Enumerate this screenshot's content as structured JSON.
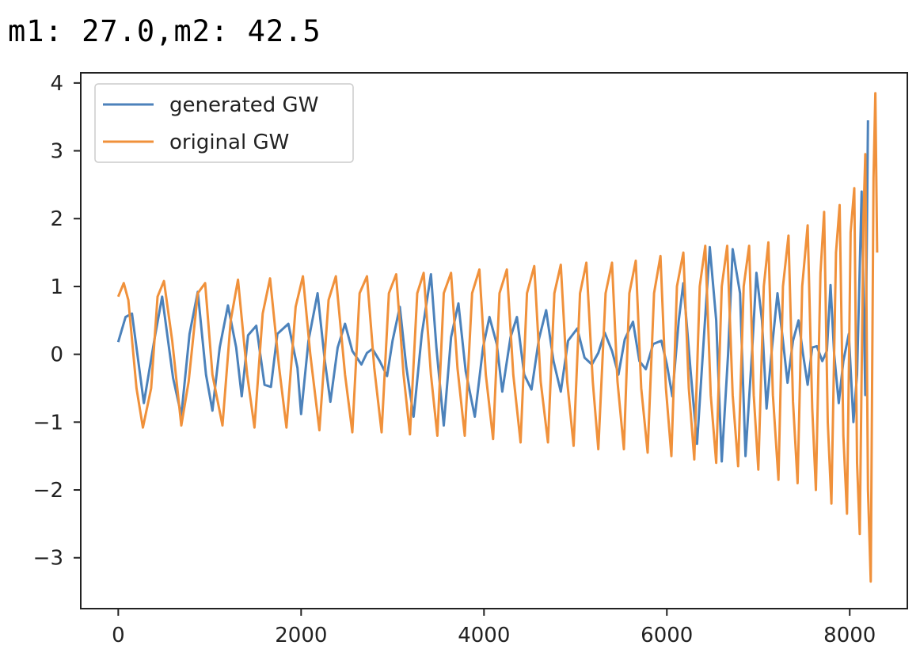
{
  "header": {
    "text": "m1: 27.0,m2: 42.5"
  },
  "chart_data": {
    "type": "line",
    "title": "",
    "xlabel": "",
    "ylabel": "",
    "xlim": [
      -410,
      8630
    ],
    "ylim": [
      -3.75,
      4.15
    ],
    "xticks": [
      0,
      2000,
      4000,
      6000,
      8000
    ],
    "yticks": [
      -3,
      -2,
      -1,
      0,
      1,
      2,
      3,
      4
    ],
    "grid": false,
    "legend": "upper-left",
    "series": [
      {
        "name": "generated GW",
        "color": "#4c82bb",
        "points": [
          [
            0,
            0.18
          ],
          [
            80,
            0.55
          ],
          [
            150,
            0.6
          ],
          [
            280,
            -0.72
          ],
          [
            400,
            0.25
          ],
          [
            480,
            0.85
          ],
          [
            600,
            -0.35
          ],
          [
            690,
            -0.9
          ],
          [
            780,
            0.3
          ],
          [
            870,
            0.92
          ],
          [
            960,
            -0.3
          ],
          [
            1030,
            -0.83
          ],
          [
            1110,
            0.1
          ],
          [
            1200,
            0.72
          ],
          [
            1290,
            0.1
          ],
          [
            1350,
            -0.62
          ],
          [
            1420,
            0.28
          ],
          [
            1510,
            0.42
          ],
          [
            1600,
            -0.45
          ],
          [
            1670,
            -0.48
          ],
          [
            1740,
            0.3
          ],
          [
            1860,
            0.45
          ],
          [
            1960,
            -0.2
          ],
          [
            2000,
            -0.88
          ],
          [
            2080,
            0.2
          ],
          [
            2180,
            0.9
          ],
          [
            2260,
            -0.1
          ],
          [
            2320,
            -0.7
          ],
          [
            2400,
            0.1
          ],
          [
            2480,
            0.45
          ],
          [
            2560,
            0.05
          ],
          [
            2660,
            -0.15
          ],
          [
            2720,
            0.02
          ],
          [
            2780,
            0.08
          ],
          [
            2860,
            -0.1
          ],
          [
            2940,
            -0.32
          ],
          [
            3000,
            0.2
          ],
          [
            3080,
            0.7
          ],
          [
            3150,
            -0.18
          ],
          [
            3230,
            -0.92
          ],
          [
            3320,
            0.3
          ],
          [
            3420,
            1.18
          ],
          [
            3480,
            0.1
          ],
          [
            3560,
            -1.05
          ],
          [
            3640,
            0.25
          ],
          [
            3720,
            0.75
          ],
          [
            3800,
            -0.25
          ],
          [
            3900,
            -0.92
          ],
          [
            3990,
            0.1
          ],
          [
            4060,
            0.55
          ],
          [
            4140,
            0.15
          ],
          [
            4200,
            -0.55
          ],
          [
            4290,
            0.25
          ],
          [
            4360,
            0.55
          ],
          [
            4440,
            -0.3
          ],
          [
            4520,
            -0.52
          ],
          [
            4600,
            0.22
          ],
          [
            4680,
            0.65
          ],
          [
            4760,
            -0.1
          ],
          [
            4840,
            -0.55
          ],
          [
            4920,
            0.2
          ],
          [
            5020,
            0.38
          ],
          [
            5100,
            -0.05
          ],
          [
            5180,
            -0.15
          ],
          [
            5250,
            0.02
          ],
          [
            5320,
            0.32
          ],
          [
            5400,
            0.05
          ],
          [
            5470,
            -0.3
          ],
          [
            5540,
            0.22
          ],
          [
            5630,
            0.48
          ],
          [
            5700,
            -0.1
          ],
          [
            5770,
            -0.22
          ],
          [
            5850,
            0.15
          ],
          [
            5940,
            0.2
          ],
          [
            6000,
            -0.15
          ],
          [
            6060,
            -0.62
          ],
          [
            6130,
            0.5
          ],
          [
            6180,
            1.05
          ],
          [
            6260,
            -0.25
          ],
          [
            6330,
            -1.32
          ],
          [
            6400,
            0.15
          ],
          [
            6470,
            1.58
          ],
          [
            6540,
            0.5
          ],
          [
            6600,
            -1.58
          ],
          [
            6670,
            0.0
          ],
          [
            6720,
            1.55
          ],
          [
            6800,
            0.9
          ],
          [
            6860,
            -1.5
          ],
          [
            6930,
            0.0
          ],
          [
            6980,
            1.2
          ],
          [
            7040,
            0.5
          ],
          [
            7090,
            -0.8
          ],
          [
            7150,
            0.1
          ],
          [
            7210,
            0.9
          ],
          [
            7270,
            0.2
          ],
          [
            7320,
            -0.42
          ],
          [
            7380,
            0.2
          ],
          [
            7440,
            0.5
          ],
          [
            7490,
            0.0
          ],
          [
            7540,
            -0.45
          ],
          [
            7590,
            0.1
          ],
          [
            7640,
            0.12
          ],
          [
            7700,
            -0.1
          ],
          [
            7750,
            0.05
          ],
          [
            7790,
            1.02
          ],
          [
            7830,
            0.0
          ],
          [
            7880,
            -0.72
          ],
          [
            7930,
            -0.1
          ],
          [
            7990,
            0.3
          ],
          [
            8040,
            -1.0
          ],
          [
            8080,
            -0.3
          ],
          [
            8130,
            2.4
          ],
          [
            8170,
            -0.6
          ],
          [
            8200,
            3.45
          ]
        ]
      },
      {
        "name": "original GW",
        "color": "#f0913b",
        "points": [
          [
            0,
            0.85
          ],
          [
            60,
            1.05
          ],
          [
            110,
            0.8
          ],
          [
            200,
            -0.5
          ],
          [
            270,
            -1.08
          ],
          [
            360,
            -0.5
          ],
          [
            430,
            0.85
          ],
          [
            500,
            1.08
          ],
          [
            590,
            0.2
          ],
          [
            690,
            -1.05
          ],
          [
            770,
            -0.4
          ],
          [
            870,
            0.9
          ],
          [
            950,
            1.05
          ],
          [
            1030,
            -0.3
          ],
          [
            1140,
            -1.05
          ],
          [
            1230,
            0.5
          ],
          [
            1310,
            1.1
          ],
          [
            1410,
            -0.3
          ],
          [
            1490,
            -1.08
          ],
          [
            1580,
            0.6
          ],
          [
            1660,
            1.12
          ],
          [
            1760,
            -0.2
          ],
          [
            1840,
            -1.08
          ],
          [
            1940,
            0.7
          ],
          [
            2020,
            1.15
          ],
          [
            2100,
            0.0
          ],
          [
            2200,
            -1.12
          ],
          [
            2300,
            0.8
          ],
          [
            2380,
            1.15
          ],
          [
            2480,
            -0.3
          ],
          [
            2560,
            -1.15
          ],
          [
            2640,
            0.9
          ],
          [
            2720,
            1.15
          ],
          [
            2800,
            -0.2
          ],
          [
            2880,
            -1.15
          ],
          [
            2960,
            0.9
          ],
          [
            3040,
            1.18
          ],
          [
            3120,
            -0.3
          ],
          [
            3190,
            -1.18
          ],
          [
            3270,
            0.9
          ],
          [
            3340,
            1.2
          ],
          [
            3420,
            -0.3
          ],
          [
            3490,
            -1.2
          ],
          [
            3560,
            0.9
          ],
          [
            3640,
            1.2
          ],
          [
            3710,
            -0.2
          ],
          [
            3790,
            -1.2
          ],
          [
            3870,
            0.9
          ],
          [
            3950,
            1.25
          ],
          [
            4020,
            -0.3
          ],
          [
            4100,
            -1.25
          ],
          [
            4170,
            0.9
          ],
          [
            4250,
            1.25
          ],
          [
            4320,
            -0.3
          ],
          [
            4400,
            -1.3
          ],
          [
            4470,
            0.9
          ],
          [
            4550,
            1.3
          ],
          [
            4620,
            -0.4
          ],
          [
            4700,
            -1.3
          ],
          [
            4770,
            0.9
          ],
          [
            4840,
            1.32
          ],
          [
            4910,
            -0.4
          ],
          [
            4980,
            -1.35
          ],
          [
            5050,
            0.9
          ],
          [
            5120,
            1.35
          ],
          [
            5190,
            -0.4
          ],
          [
            5250,
            -1.4
          ],
          [
            5330,
            0.9
          ],
          [
            5400,
            1.35
          ],
          [
            5460,
            -0.4
          ],
          [
            5530,
            -1.4
          ],
          [
            5590,
            0.9
          ],
          [
            5660,
            1.38
          ],
          [
            5720,
            -0.5
          ],
          [
            5790,
            -1.45
          ],
          [
            5860,
            0.9
          ],
          [
            5930,
            1.45
          ],
          [
            5990,
            -0.5
          ],
          [
            6050,
            -1.5
          ],
          [
            6110,
            1.0
          ],
          [
            6180,
            1.5
          ],
          [
            6240,
            -0.5
          ],
          [
            6300,
            -1.55
          ],
          [
            6360,
            1.0
          ],
          [
            6420,
            1.6
          ],
          [
            6480,
            -0.6
          ],
          [
            6540,
            -1.6
          ],
          [
            6600,
            1.0
          ],
          [
            6660,
            1.6
          ],
          [
            6720,
            -0.6
          ],
          [
            6780,
            -1.65
          ],
          [
            6840,
            1.0
          ],
          [
            6900,
            1.6
          ],
          [
            6950,
            -0.6
          ],
          [
            7000,
            -1.7
          ],
          [
            7060,
            1.0
          ],
          [
            7110,
            1.65
          ],
          [
            7160,
            -0.6
          ],
          [
            7220,
            -1.85
          ],
          [
            7270,
            1.0
          ],
          [
            7330,
            1.75
          ],
          [
            7380,
            -0.7
          ],
          [
            7430,
            -1.9
          ],
          [
            7480,
            1.0
          ],
          [
            7540,
            1.9
          ],
          [
            7590,
            -0.8
          ],
          [
            7630,
            -2.0
          ],
          [
            7680,
            1.2
          ],
          [
            7720,
            2.1
          ],
          [
            7760,
            -1.0
          ],
          [
            7800,
            -2.2
          ],
          [
            7850,
            1.5
          ],
          [
            7890,
            2.2
          ],
          [
            7930,
            -1.2
          ],
          [
            7970,
            -2.35
          ],
          [
            8010,
            1.8
          ],
          [
            8050,
            2.45
          ],
          [
            8080,
            -1.6
          ],
          [
            8110,
            -2.65
          ],
          [
            8150,
            2.0
          ],
          [
            8170,
            2.95
          ],
          [
            8200,
            -2.0
          ],
          [
            8230,
            -3.35
          ],
          [
            8260,
            2.6
          ],
          [
            8280,
            3.85
          ],
          [
            8300,
            1.5
          ]
        ]
      }
    ]
  }
}
